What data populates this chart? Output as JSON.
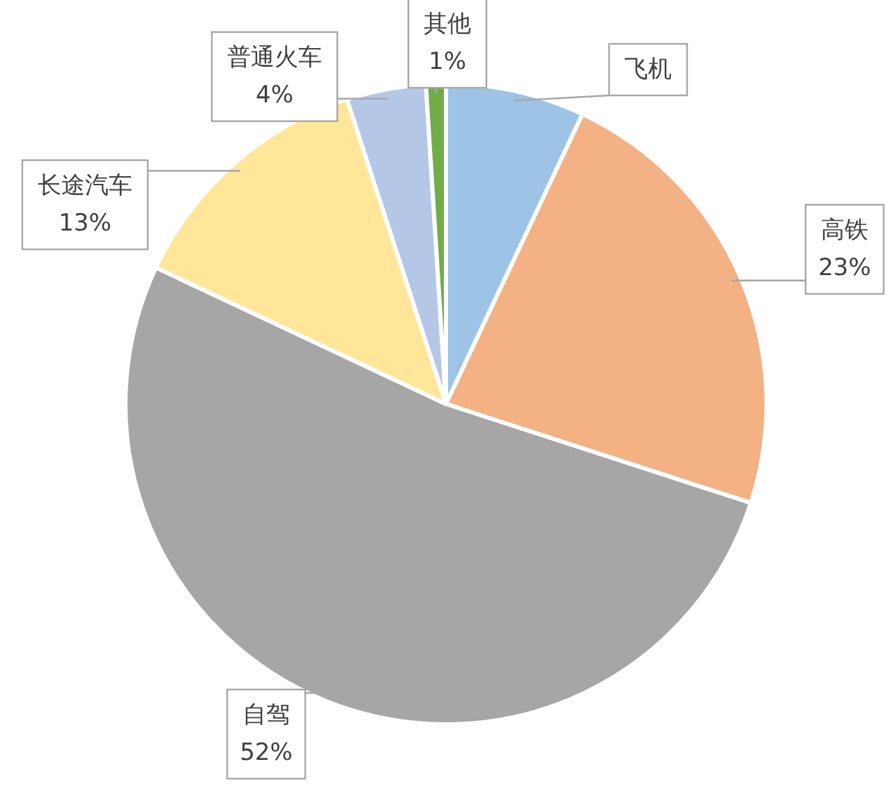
{
  "chart_data": {
    "type": "pie",
    "categories": [
      "飞机",
      "高铁",
      "自驾",
      "长途汽车",
      "普通火车",
      "其他"
    ],
    "values": [
      7,
      23,
      52,
      13,
      4,
      1
    ],
    "colors": [
      "#9dc3e6",
      "#f4b183",
      "#a6a6a6",
      "#ffe699",
      "#b4c7e7",
      "#70ad47"
    ],
    "value_labels": [
      null,
      "23%",
      "52%",
      "13%",
      "4%",
      "1%"
    ]
  }
}
